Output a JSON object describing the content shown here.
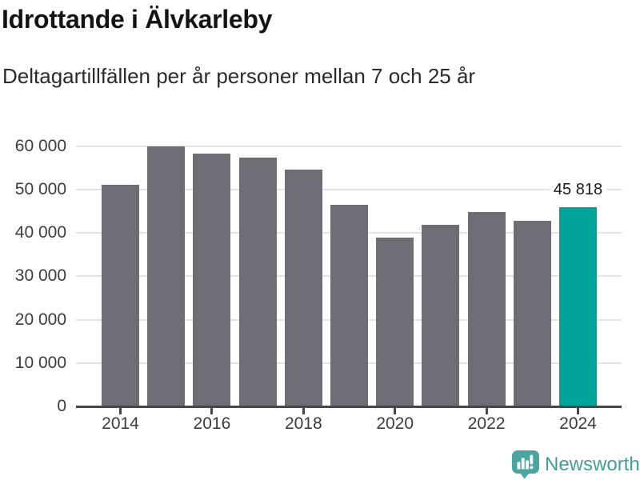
{
  "chart_data": {
    "type": "bar",
    "title": "Idrottande i Älvkarleby",
    "subtitle": "Deltagartillfällen per år personer mellan 7 och 25 år",
    "categories": [
      "2014",
      "2015",
      "2016",
      "2017",
      "2018",
      "2019",
      "2020",
      "2021",
      "2022",
      "2023",
      "2024"
    ],
    "values": [
      51100,
      60000,
      58200,
      57400,
      54500,
      46500,
      38900,
      41900,
      44800,
      42800,
      45818
    ],
    "highlight_index": 10,
    "annotation": {
      "index": 10,
      "label": "45 818"
    },
    "xlabel": "",
    "ylabel": "",
    "ylim": [
      0,
      60000
    ],
    "ytick_step": 10000,
    "ytick_labels": [
      "0",
      "10 000",
      "20 000",
      "30 000",
      "40 000",
      "50 000",
      "60 000"
    ],
    "xtick_years": [
      2014,
      2016,
      2018,
      2020,
      2022,
      2024
    ],
    "xtick_labels": [
      "2014",
      "2016",
      "2018",
      "2020",
      "2022",
      "2024"
    ],
    "grid": "horizontal",
    "legend": "none",
    "colors": {
      "bar": "#6d6d73",
      "highlight": "#00a39a",
      "grid": "#e3e3e3",
      "axis": "#47474b",
      "tick_label": "#3c3c3c",
      "annotation": "#1a1a1a"
    }
  },
  "branding": {
    "logo_text": "Newsworthy",
    "logo_text_color": "#3f9e9a",
    "logo_icon_color": "#4aa5a1"
  }
}
